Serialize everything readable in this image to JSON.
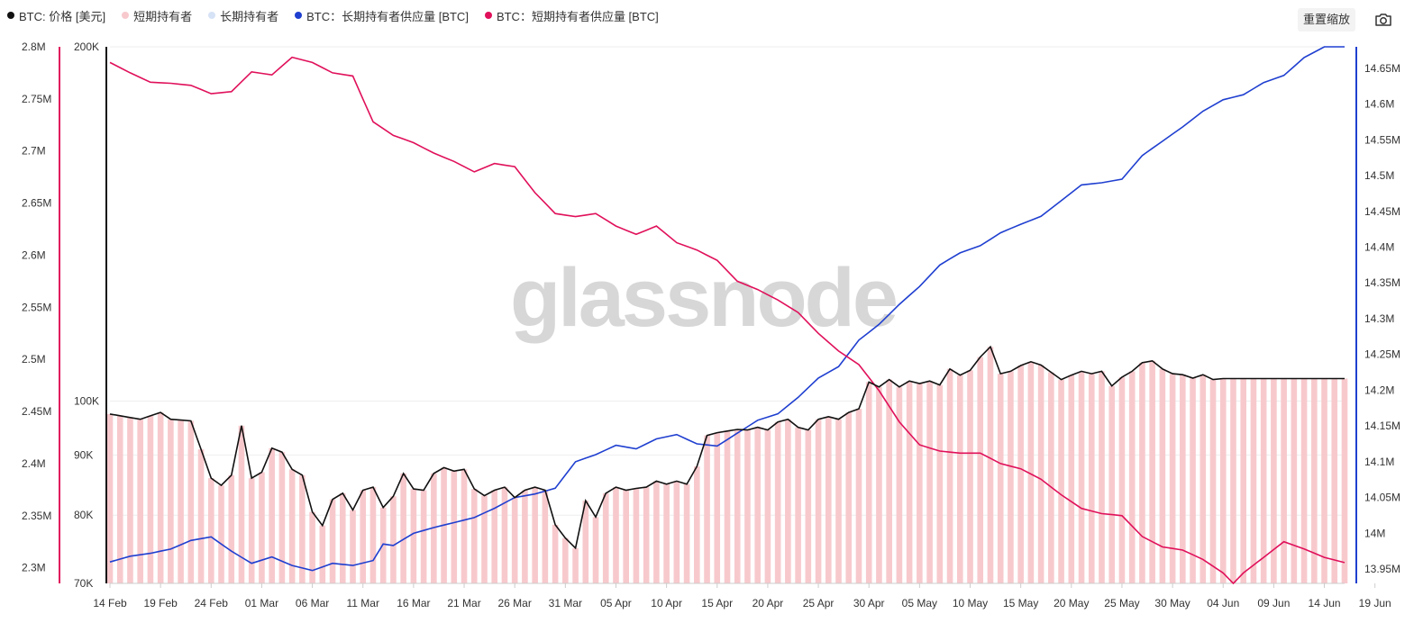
{
  "toolbar": {
    "reset_label": "重置缩放",
    "camera_icon": "camera-icon"
  },
  "watermark": "glassnode",
  "colors": {
    "price": "#111111",
    "sth_bar": "#f7c9cd",
    "lth_legend": "#d6e2f6",
    "lth_supply": "#1f3fd0",
    "sth_supply": "#e0105a",
    "grid": "#eeeeee"
  },
  "legend": [
    {
      "label": "BTC: 价格 [美元]",
      "color": "#111111"
    },
    {
      "label": "短期持有者",
      "color": "#f7c9cd"
    },
    {
      "label": "长期持有者",
      "color": "#d6e2f6"
    },
    {
      "label": "BTC：长期持有者供应量 [BTC]",
      "color": "#1f3fd0"
    },
    {
      "label": "BTC：短期持有者供应量 [BTC]",
      "color": "#e0105a"
    }
  ],
  "chart_data": {
    "type": "line",
    "x_axis": {
      "ticks": [
        "14 Feb",
        "19 Feb",
        "24 Feb",
        "01 Mar",
        "06 Mar",
        "11 Mar",
        "16 Mar",
        "21 Mar",
        "26 Mar",
        "31 Mar",
        "05 Apr",
        "10 Apr",
        "15 Apr",
        "20 Apr",
        "25 Apr",
        "30 Apr",
        "05 May",
        "10 May",
        "15 May",
        "20 May",
        "25 May",
        "30 May",
        "04 Jun",
        "09 Jun",
        "14 Jun",
        "19 Jun"
      ],
      "range": [
        "14 Feb",
        "19 Jun"
      ]
    },
    "y_axes": {
      "sth_supply": {
        "ticks": [
          "2.3M",
          "2.35M",
          "2.4M",
          "2.45M",
          "2.5M",
          "2.55M",
          "2.6M",
          "2.65M",
          "2.7M",
          "2.75M",
          "2.8M"
        ],
        "range": [
          2285000,
          2800000
        ]
      },
      "price": {
        "ticks": [
          "70K",
          "80K",
          "90K",
          "100K",
          "200K"
        ],
        "scale": "log",
        "range": [
          70000,
          200000
        ]
      },
      "lth_supply": {
        "ticks": [
          "13.95M",
          "14M",
          "14.05M",
          "14.1M",
          "14.15M",
          "14.2M",
          "14.25M",
          "14.3M",
          "14.35M",
          "14.4M",
          "14.45M",
          "14.5M",
          "14.55M",
          "14.6M",
          "14.65M"
        ],
        "range": [
          13930000,
          14680000
        ]
      }
    },
    "series": [
      {
        "name": "BTC: 价格 [美元]",
        "axis": "price",
        "kind": "line",
        "anchors": [
          [
            0,
            97500
          ],
          [
            3,
            96500
          ],
          [
            5,
            97800
          ],
          [
            6,
            96500
          ],
          [
            8,
            96200
          ],
          [
            9,
            91000
          ],
          [
            10,
            86000
          ],
          [
            11,
            84800
          ],
          [
            12,
            86500
          ],
          [
            13,
            95300
          ],
          [
            14,
            86000
          ],
          [
            15,
            87000
          ],
          [
            16,
            91200
          ],
          [
            17,
            90500
          ],
          [
            18,
            87500
          ],
          [
            19,
            86500
          ],
          [
            20,
            80500
          ],
          [
            21,
            78400
          ],
          [
            22,
            82500
          ],
          [
            23,
            83500
          ],
          [
            24,
            80800
          ],
          [
            25,
            84000
          ],
          [
            26,
            84500
          ],
          [
            27,
            81200
          ],
          [
            28,
            83000
          ],
          [
            29,
            86800
          ],
          [
            30,
            84200
          ],
          [
            31,
            84000
          ],
          [
            32,
            86800
          ],
          [
            33,
            87800
          ],
          [
            34,
            87200
          ],
          [
            35,
            87500
          ],
          [
            36,
            84200
          ],
          [
            37,
            83100
          ],
          [
            38,
            84000
          ],
          [
            39,
            84500
          ],
          [
            40,
            82800
          ],
          [
            41,
            84000
          ],
          [
            42,
            84500
          ],
          [
            43,
            84000
          ],
          [
            44,
            78500
          ],
          [
            45,
            76500
          ],
          [
            46,
            75000
          ],
          [
            47,
            82300
          ],
          [
            48,
            79700
          ],
          [
            49,
            83500
          ],
          [
            50,
            84500
          ],
          [
            51,
            84000
          ],
          [
            52,
            84300
          ],
          [
            53,
            84500
          ],
          [
            54,
            85500
          ],
          [
            55,
            85000
          ],
          [
            56,
            85500
          ],
          [
            57,
            85000
          ],
          [
            58,
            88000
          ],
          [
            59,
            93500
          ],
          [
            60,
            94000
          ],
          [
            62,
            94600
          ],
          [
            63,
            94500
          ],
          [
            64,
            95000
          ],
          [
            65,
            94500
          ],
          [
            66,
            96000
          ],
          [
            67,
            96500
          ],
          [
            68,
            95000
          ],
          [
            69,
            94500
          ],
          [
            70,
            96500
          ],
          [
            71,
            97000
          ],
          [
            72,
            96500
          ],
          [
            73,
            97800
          ],
          [
            74,
            98500
          ],
          [
            75,
            103800
          ],
          [
            76,
            102800
          ],
          [
            77,
            104300
          ],
          [
            78,
            102800
          ],
          [
            79,
            104000
          ],
          [
            80,
            103500
          ],
          [
            81,
            104000
          ],
          [
            82,
            103200
          ],
          [
            83,
            106500
          ],
          [
            84,
            105200
          ],
          [
            85,
            106200
          ],
          [
            86,
            109000
          ],
          [
            87,
            111200
          ],
          [
            88,
            105500
          ],
          [
            89,
            106000
          ],
          [
            90,
            107200
          ],
          [
            91,
            108000
          ],
          [
            92,
            107300
          ],
          [
            93,
            105800
          ],
          [
            94,
            104300
          ],
          [
            95,
            105200
          ],
          [
            96,
            106000
          ],
          [
            97,
            105500
          ],
          [
            98,
            106000
          ],
          [
            99,
            103000
          ],
          [
            100,
            104800
          ],
          [
            101,
            106000
          ],
          [
            102,
            107800
          ],
          [
            103,
            108200
          ],
          [
            104,
            106500
          ],
          [
            105,
            105500
          ],
          [
            106,
            105300
          ],
          [
            107,
            104600
          ],
          [
            108,
            105300
          ],
          [
            109,
            104300
          ],
          [
            110,
            104500
          ]
        ]
      },
      {
        "name": "短期持有者",
        "axis": "price",
        "kind": "bars",
        "follows": "BTC: 价格 [美元]"
      },
      {
        "name": "BTC：长期持有者供应量 [BTC]",
        "axis": "lth_supply",
        "kind": "line",
        "anchors": [
          [
            0,
            13960000
          ],
          [
            2,
            13968000
          ],
          [
            4,
            13972000
          ],
          [
            6,
            13978000
          ],
          [
            8,
            13990000
          ],
          [
            10,
            13995000
          ],
          [
            12,
            13975000
          ],
          [
            14,
            13958000
          ],
          [
            16,
            13967000
          ],
          [
            18,
            13955000
          ],
          [
            20,
            13948000
          ],
          [
            22,
            13958000
          ],
          [
            24,
            13955000
          ],
          [
            26,
            13962000
          ],
          [
            27,
            13985000
          ],
          [
            28,
            13983000
          ],
          [
            30,
            14000000
          ],
          [
            32,
            14008000
          ],
          [
            34,
            14015000
          ],
          [
            36,
            14022000
          ],
          [
            38,
            14035000
          ],
          [
            40,
            14050000
          ],
          [
            42,
            14055000
          ],
          [
            44,
            14063000
          ],
          [
            46,
            14100000
          ],
          [
            48,
            14110000
          ],
          [
            50,
            14123000
          ],
          [
            52,
            14118000
          ],
          [
            54,
            14132000
          ],
          [
            56,
            14138000
          ],
          [
            58,
            14125000
          ],
          [
            60,
            14122000
          ],
          [
            62,
            14140000
          ],
          [
            64,
            14158000
          ],
          [
            66,
            14167000
          ],
          [
            68,
            14190000
          ],
          [
            70,
            14217000
          ],
          [
            72,
            14233000
          ],
          [
            74,
            14270000
          ],
          [
            76,
            14292000
          ],
          [
            78,
            14320000
          ],
          [
            80,
            14345000
          ],
          [
            82,
            14375000
          ],
          [
            84,
            14392000
          ],
          [
            86,
            14402000
          ],
          [
            88,
            14420000
          ],
          [
            90,
            14432000
          ],
          [
            92,
            14443000
          ],
          [
            94,
            14465000
          ],
          [
            96,
            14487000
          ],
          [
            98,
            14490000
          ],
          [
            100,
            14495000
          ],
          [
            102,
            14528000
          ],
          [
            104,
            14548000
          ],
          [
            106,
            14568000
          ],
          [
            108,
            14590000
          ],
          [
            110,
            14606000
          ],
          [
            112,
            14613000
          ],
          [
            114,
            14630000
          ],
          [
            116,
            14640000
          ],
          [
            118,
            14665000
          ],
          [
            120,
            14680000
          ],
          [
            122,
            14680000
          ]
        ]
      },
      {
        "name": "BTC：短期持有者供应量 [BTC]",
        "axis": "sth_supply",
        "kind": "line",
        "anchors": [
          [
            0,
            2785000
          ],
          [
            2,
            2775000
          ],
          [
            4,
            2766000
          ],
          [
            6,
            2765000
          ],
          [
            8,
            2763000
          ],
          [
            10,
            2755000
          ],
          [
            12,
            2757000
          ],
          [
            14,
            2776000
          ],
          [
            16,
            2773000
          ],
          [
            18,
            2790000
          ],
          [
            20,
            2785000
          ],
          [
            22,
            2775000
          ],
          [
            24,
            2772000
          ],
          [
            26,
            2728000
          ],
          [
            28,
            2715000
          ],
          [
            30,
            2708000
          ],
          [
            32,
            2698000
          ],
          [
            34,
            2690000
          ],
          [
            36,
            2680000
          ],
          [
            38,
            2688000
          ],
          [
            40,
            2685000
          ],
          [
            42,
            2660000
          ],
          [
            44,
            2640000
          ],
          [
            46,
            2637000
          ],
          [
            48,
            2640000
          ],
          [
            50,
            2628000
          ],
          [
            52,
            2620000
          ],
          [
            54,
            2628000
          ],
          [
            56,
            2612000
          ],
          [
            58,
            2605000
          ],
          [
            60,
            2595000
          ],
          [
            62,
            2575000
          ],
          [
            64,
            2567000
          ],
          [
            66,
            2557000
          ],
          [
            68,
            2545000
          ],
          [
            70,
            2525000
          ],
          [
            72,
            2508000
          ],
          [
            74,
            2495000
          ],
          [
            76,
            2470000
          ],
          [
            78,
            2440000
          ],
          [
            80,
            2418000
          ],
          [
            82,
            2412000
          ],
          [
            84,
            2410000
          ],
          [
            86,
            2410000
          ],
          [
            88,
            2400000
          ],
          [
            90,
            2395000
          ],
          [
            92,
            2385000
          ],
          [
            94,
            2370000
          ],
          [
            96,
            2357000
          ],
          [
            98,
            2352000
          ],
          [
            100,
            2350000
          ],
          [
            102,
            2330000
          ],
          [
            104,
            2320000
          ],
          [
            106,
            2317000
          ],
          [
            108,
            2308000
          ],
          [
            110,
            2295000
          ],
          [
            111,
            2285000
          ],
          [
            112,
            2295000
          ],
          [
            114,
            2310000
          ],
          [
            116,
            2325000
          ],
          [
            118,
            2318000
          ],
          [
            120,
            2310000
          ],
          [
            122,
            2305000
          ]
        ]
      }
    ]
  }
}
